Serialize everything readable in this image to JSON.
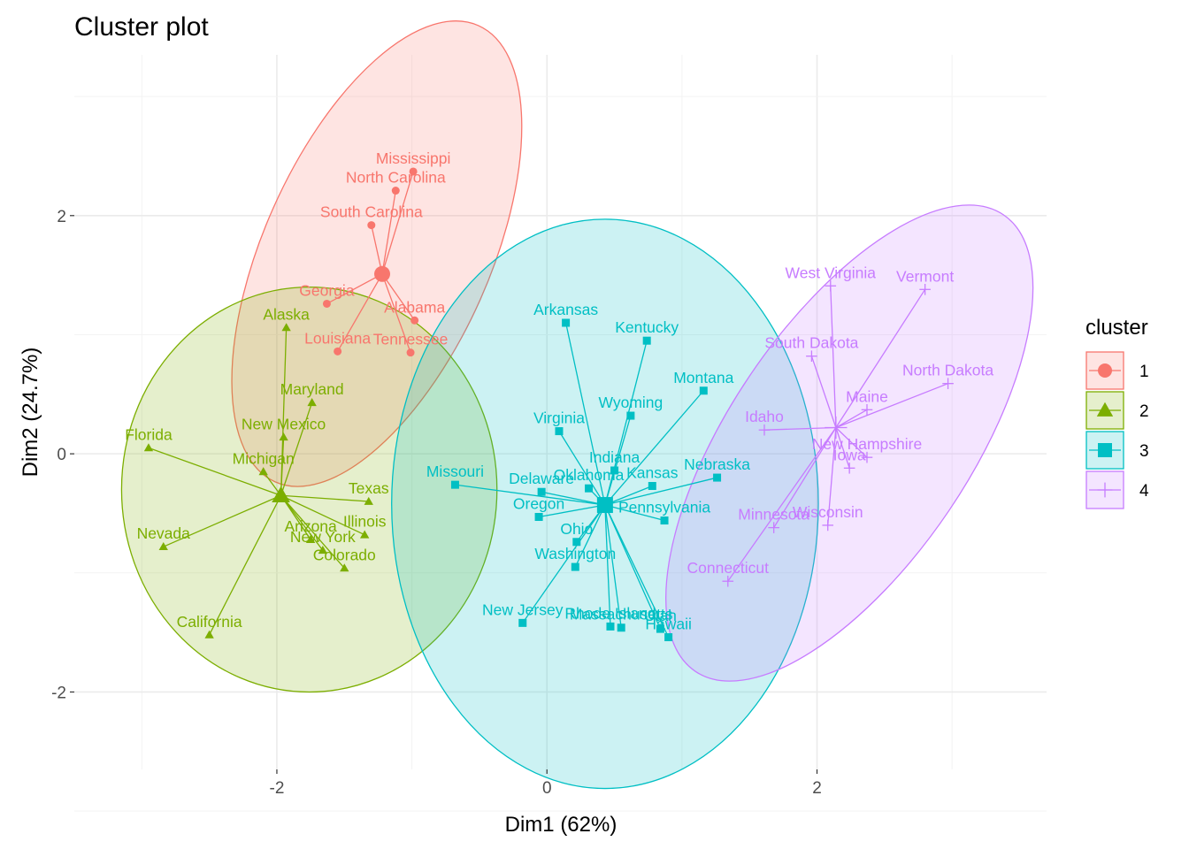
{
  "chart_data": {
    "type": "scatter",
    "title": "Cluster plot",
    "xlabel": "Dim1 (62%)",
    "ylabel": "Dim2 (24.7%)",
    "xlim": [
      -3.5,
      3.7
    ],
    "ylim": [
      -2.65,
      3.35
    ],
    "x_ticks": [
      -2,
      0,
      2
    ],
    "y_ticks": [
      -2,
      0,
      2
    ],
    "x_tick_labels": [
      "-2",
      "0",
      "2"
    ],
    "y_tick_labels": [
      "-2",
      "0",
      "2"
    ],
    "grid": true,
    "legend": {
      "title": "cluster",
      "position": "right",
      "entries": [
        "1",
        "2",
        "3",
        "4"
      ]
    },
    "series": [
      {
        "name": "1",
        "color": "#F8766D",
        "shape": "circle",
        "center": [
          -1.22,
          1.51
        ],
        "ellipse": {
          "cx": -1.26,
          "cy": 1.68,
          "rx": 1.85,
          "ry": 0.95,
          "angle_deg": 66
        },
        "points": [
          {
            "label": "Mississippi",
            "x": -0.99,
            "y": 2.37
          },
          {
            "label": "North Carolina",
            "x": -1.12,
            "y": 2.21
          },
          {
            "label": "South Carolina",
            "x": -1.3,
            "y": 1.92
          },
          {
            "label": "Georgia",
            "x": -1.63,
            "y": 1.26
          },
          {
            "label": "Alabama",
            "x": -0.98,
            "y": 1.12
          },
          {
            "label": "Tennessee",
            "x": -1.01,
            "y": 0.85
          },
          {
            "label": "Louisiana",
            "x": -1.55,
            "y": 0.86
          }
        ]
      },
      {
        "name": "2",
        "color": "#7CAE00",
        "shape": "triangle",
        "center": [
          -1.97,
          -0.35
        ],
        "ellipse": {
          "cx": -1.76,
          "cy": -0.3,
          "rx": 1.39,
          "ry": 1.7,
          "angle_deg": 0
        },
        "points": [
          {
            "label": "Alaska",
            "x": -1.93,
            "y": 1.06
          },
          {
            "label": "Maryland",
            "x": -1.74,
            "y": 0.43
          },
          {
            "label": "Florida",
            "x": -2.95,
            "y": 0.05
          },
          {
            "label": "New Mexico",
            "x": -1.95,
            "y": 0.14
          },
          {
            "label": "Michigan",
            "x": -2.1,
            "y": -0.15
          },
          {
            "label": "Texas",
            "x": -1.32,
            "y": -0.4
          },
          {
            "label": "Illinois",
            "x": -1.35,
            "y": -0.68
          },
          {
            "label": "Arizona",
            "x": -1.75,
            "y": -0.72
          },
          {
            "label": "New York",
            "x": -1.66,
            "y": -0.81
          },
          {
            "label": "Colorado",
            "x": -1.5,
            "y": -0.96
          },
          {
            "label": "Nevada",
            "x": -2.84,
            "y": -0.78
          },
          {
            "label": "California",
            "x": -2.5,
            "y": -1.52
          }
        ]
      },
      {
        "name": "3",
        "color": "#00BFC4",
        "shape": "square",
        "center": [
          0.43,
          -0.43
        ],
        "ellipse": {
          "cx": 0.43,
          "cy": -0.42,
          "rx": 1.58,
          "ry": 2.39,
          "angle_deg": 0
        },
        "points": [
          {
            "label": "Arkansas",
            "x": 0.14,
            "y": 1.1
          },
          {
            "label": "Kentucky",
            "x": 0.74,
            "y": 0.95
          },
          {
            "label": "Montana",
            "x": 1.16,
            "y": 0.53
          },
          {
            "label": "Wyoming",
            "x": 0.62,
            "y": 0.32
          },
          {
            "label": "Virginia",
            "x": 0.09,
            "y": 0.19
          },
          {
            "label": "Indiana",
            "x": 0.5,
            "y": -0.14
          },
          {
            "label": "Nebraska",
            "x": 1.26,
            "y": -0.2
          },
          {
            "label": "Missouri",
            "x": -0.68,
            "y": -0.26
          },
          {
            "label": "Delaware",
            "x": -0.04,
            "y": -0.32
          },
          {
            "label": "Oklahoma",
            "x": 0.31,
            "y": -0.29
          },
          {
            "label": "Kansas",
            "x": 0.78,
            "y": -0.27
          },
          {
            "label": "Oregon",
            "x": -0.06,
            "y": -0.53
          },
          {
            "label": "Pennsylvania",
            "x": 0.87,
            "y": -0.56
          },
          {
            "label": "Ohio",
            "x": 0.22,
            "y": -0.74
          },
          {
            "label": "Washington",
            "x": 0.21,
            "y": -0.95
          },
          {
            "label": "New Jersey",
            "x": -0.18,
            "y": -1.42
          },
          {
            "label": "Rhode Island",
            "x": 0.47,
            "y": -1.45
          },
          {
            "label": "Massachusetts",
            "x": 0.55,
            "y": -1.46
          },
          {
            "label": "Utah",
            "x": 0.84,
            "y": -1.47
          },
          {
            "label": "Hawaii",
            "x": 0.9,
            "y": -1.54
          }
        ]
      },
      {
        "name": "4",
        "color": "#C77CFF",
        "shape": "cross",
        "center": [
          2.14,
          0.22
        ],
        "ellipse": {
          "cx": 2.24,
          "cy": 0.09,
          "rx": 2.04,
          "ry": 1.01,
          "angle_deg": 56
        },
        "points": [
          {
            "label": "West Virginia",
            "x": 2.1,
            "y": 1.41
          },
          {
            "label": "Vermont",
            "x": 2.8,
            "y": 1.38
          },
          {
            "label": "South Dakota",
            "x": 1.96,
            "y": 0.82
          },
          {
            "label": "North Dakota",
            "x": 2.97,
            "y": 0.59
          },
          {
            "label": "Maine",
            "x": 2.37,
            "y": 0.37
          },
          {
            "label": "Idaho",
            "x": 1.61,
            "y": 0.2
          },
          {
            "label": "New Hampshire",
            "x": 2.37,
            "y": -0.03
          },
          {
            "label": "Iowa",
            "x": 2.24,
            "y": -0.12
          },
          {
            "label": "Wisconsin",
            "x": 2.08,
            "y": -0.6
          },
          {
            "label": "Minnesota",
            "x": 1.68,
            "y": -0.62
          },
          {
            "label": "Connecticut",
            "x": 1.34,
            "y": -1.07
          }
        ]
      }
    ]
  }
}
